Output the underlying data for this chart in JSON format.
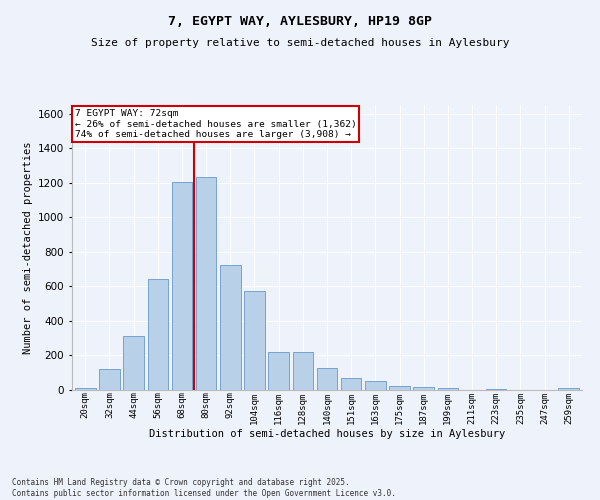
{
  "title": "7, EGYPT WAY, AYLESBURY, HP19 8GP",
  "subtitle": "Size of property relative to semi-detached houses in Aylesbury",
  "xlabel": "Distribution of semi-detached houses by size in Aylesbury",
  "ylabel": "Number of semi-detached properties",
  "footer_line1": "Contains HM Land Registry data © Crown copyright and database right 2025.",
  "footer_line2": "Contains public sector information licensed under the Open Government Licence v3.0.",
  "bar_labels": [
    "20sqm",
    "32sqm",
    "44sqm",
    "56sqm",
    "68sqm",
    "80sqm",
    "92sqm",
    "104sqm",
    "116sqm",
    "128sqm",
    "140sqm",
    "151sqm",
    "163sqm",
    "175sqm",
    "187sqm",
    "199sqm",
    "211sqm",
    "223sqm",
    "235sqm",
    "247sqm",
    "259sqm"
  ],
  "bar_values": [
    10,
    120,
    310,
    645,
    1205,
    1235,
    725,
    575,
    220,
    220,
    130,
    70,
    50,
    25,
    20,
    10,
    0,
    5,
    0,
    0,
    10
  ],
  "bar_color": "#b8d0e8",
  "bar_edge_color": "#6699cc",
  "background_color": "#eef2fb",
  "grid_color": "#ffffff",
  "property_label": "7 EGYPT WAY: 72sqm",
  "pct_smaller": 26,
  "pct_larger": 74,
  "n_smaller": 1362,
  "n_larger": 3908,
  "vline_color": "#cc0000",
  "annotation_box_edge": "#cc0000",
  "ylim": [
    0,
    1650
  ],
  "yticks": [
    0,
    200,
    400,
    600,
    800,
    1000,
    1200,
    1400,
    1600
  ]
}
